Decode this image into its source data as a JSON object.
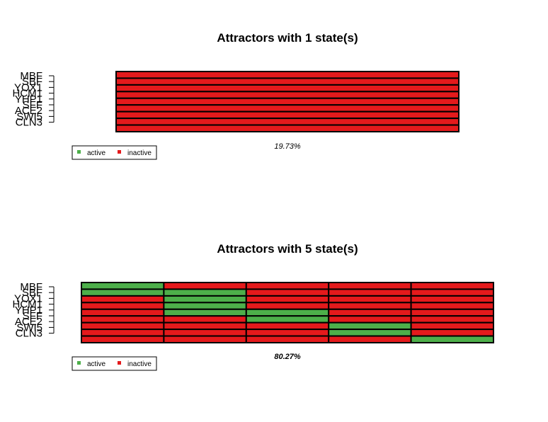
{
  "colors": {
    "active": "#4DAF4A",
    "inactive": "#E41A1C",
    "border": "#000000"
  },
  "genes": [
    "MBF",
    "SBF",
    "YOX1",
    "HCM1",
    "YHP1",
    "SFF",
    "ACE2",
    "SWI5",
    "CLN3"
  ],
  "chart_data": [
    {
      "type": "heatmap",
      "title": "Attractors with 1 state(s)",
      "rows": [
        "MBF",
        "SBF",
        "YOX1",
        "HCM1",
        "YHP1",
        "SFF",
        "ACE2",
        "SWI5",
        "CLN3"
      ],
      "states": 1,
      "values": [
        [
          0
        ],
        [
          0
        ],
        [
          0
        ],
        [
          0
        ],
        [
          0
        ],
        [
          0
        ],
        [
          0
        ],
        [
          0
        ],
        [
          0
        ]
      ],
      "basin_label": "19.73%",
      "legend": [
        "active",
        "inactive"
      ]
    },
    {
      "type": "heatmap",
      "title": "Attractors with 5 state(s)",
      "rows": [
        "MBF",
        "SBF",
        "YOX1",
        "HCM1",
        "YHP1",
        "SFF",
        "ACE2",
        "SWI5",
        "CLN3"
      ],
      "states": 5,
      "values": [
        [
          1,
          0,
          0,
          0,
          0
        ],
        [
          1,
          1,
          0,
          0,
          0
        ],
        [
          0,
          1,
          0,
          0,
          0
        ],
        [
          0,
          1,
          0,
          0,
          0
        ],
        [
          0,
          1,
          1,
          0,
          0
        ],
        [
          0,
          0,
          1,
          0,
          0
        ],
        [
          0,
          0,
          0,
          1,
          0
        ],
        [
          0,
          0,
          0,
          1,
          0
        ],
        [
          0,
          0,
          0,
          0,
          1
        ]
      ],
      "basin_label": "80.27%",
      "legend": [
        "active",
        "inactive"
      ]
    }
  ]
}
